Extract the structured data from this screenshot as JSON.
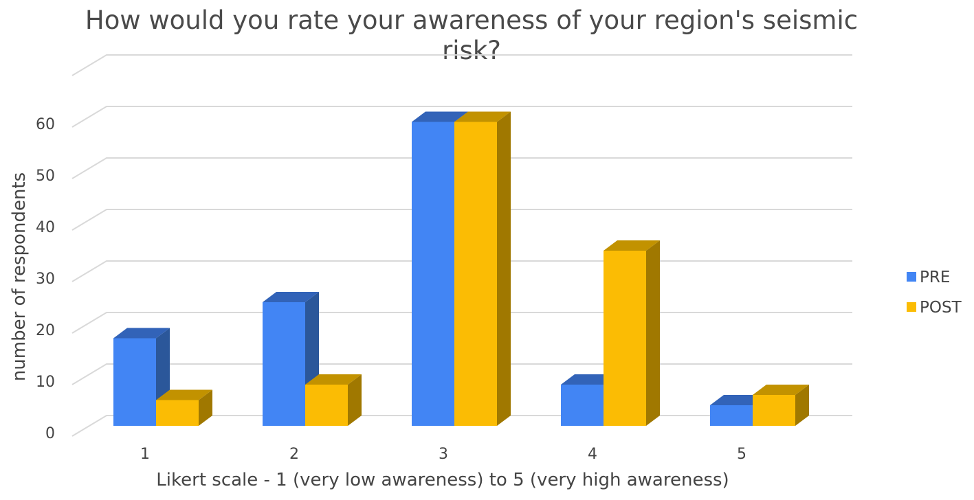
{
  "chart_data": {
    "type": "bar",
    "title": "How would you rate your awareness of your region's seismic risk?",
    "title_lines": [
      "How would you rate your awareness of your region's seismic",
      "risk?"
    ],
    "xlabel": "Likert scale - 1 (very low awareness) to 5 (very high awareness)",
    "ylabel": "number of respondents",
    "categories": [
      "1",
      "2",
      "3",
      "4",
      "5"
    ],
    "series": [
      {
        "name": "PRE",
        "values": [
          17,
          24,
          59,
          8,
          4
        ],
        "color": "#4285F4",
        "side_color": "#2B579A",
        "top_color": "#3263B8"
      },
      {
        "name": "POST",
        "values": [
          5,
          8,
          59,
          34,
          6
        ],
        "color": "#FBBC04",
        "side_color": "#A07800",
        "top_color": "#C29200"
      }
    ],
    "y_ticks": [
      "0",
      "10",
      "20",
      "30",
      "40",
      "50",
      "60"
    ],
    "ylim": [
      0,
      60
    ],
    "grid": true,
    "three_d": true,
    "legend_position": "right"
  }
}
